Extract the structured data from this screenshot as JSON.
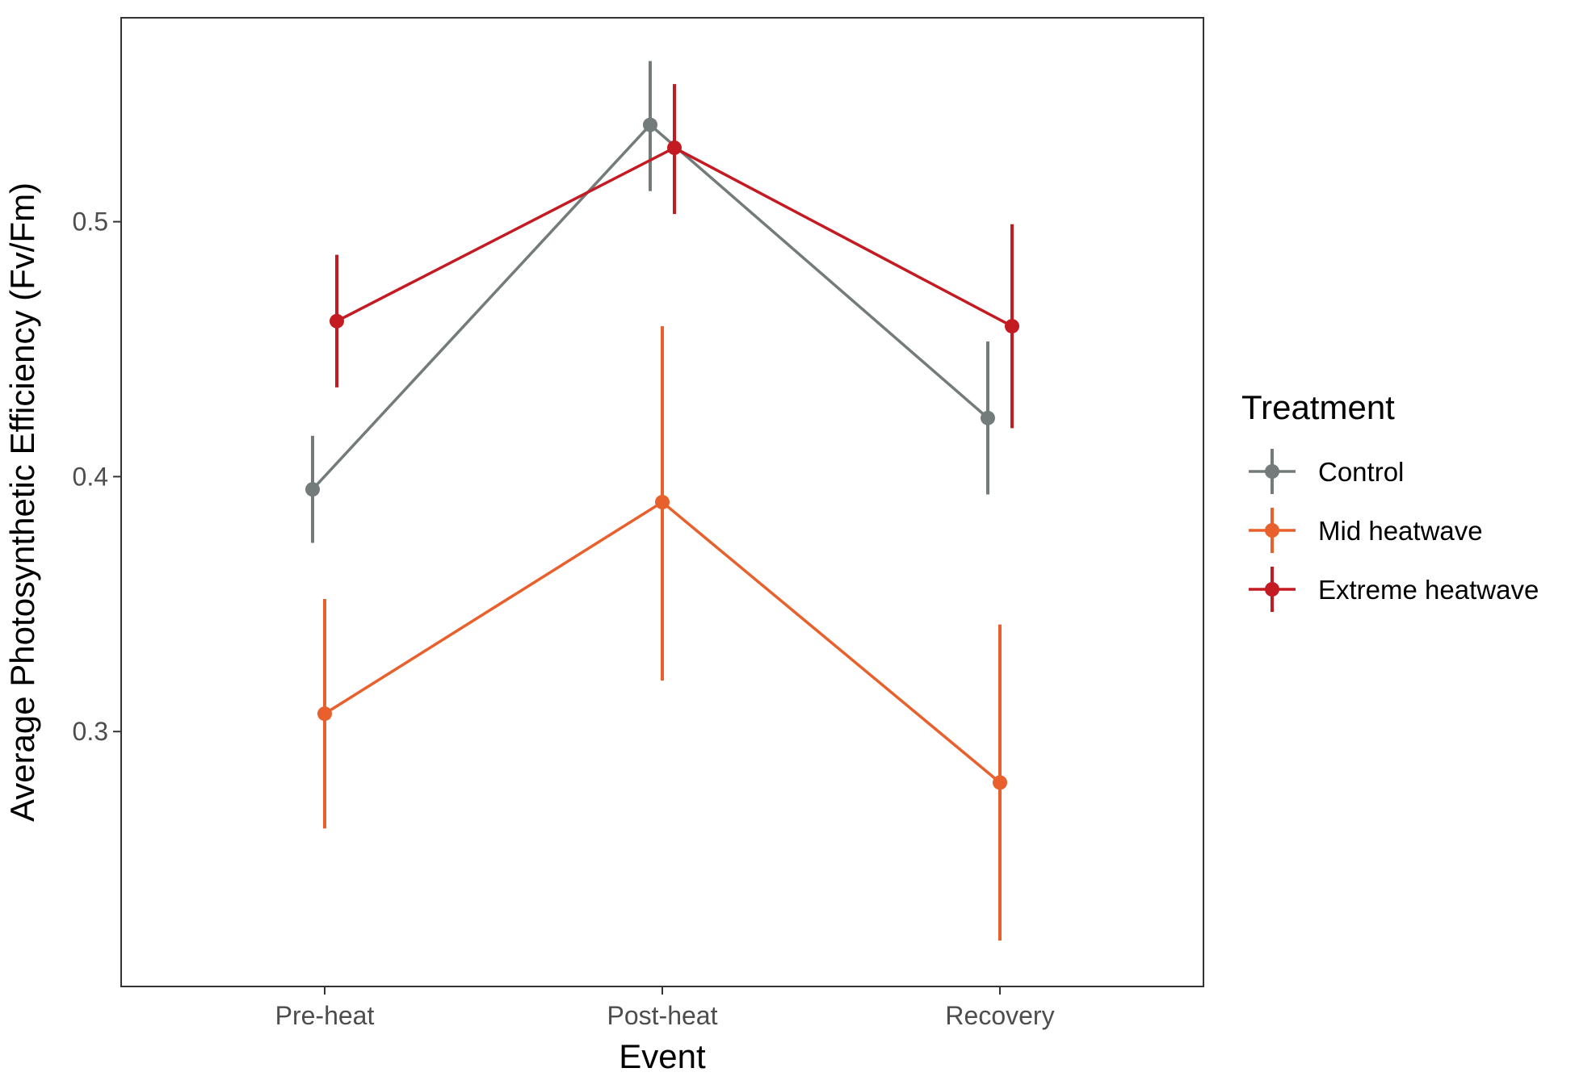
{
  "chart_data": {
    "type": "line",
    "xlabel": "Event",
    "ylabel": "Average Photosynthetic Efficiency (Fv/Fm)",
    "categories": [
      "Pre-heat",
      "Post-heat",
      "Recovery"
    ],
    "ylim": [
      0.2,
      0.58
    ],
    "yticks": [
      0.3,
      0.4,
      0.5
    ],
    "ytick_labels": [
      "0.3",
      "0.4",
      "0.5"
    ],
    "grid": false,
    "legend_title": "Treatment",
    "legend_position": "right",
    "series": [
      {
        "name": "Control",
        "color": "#737b7b",
        "values": [
          0.395,
          0.538,
          0.423
        ],
        "lower": [
          0.374,
          0.512,
          0.393
        ],
        "upper": [
          0.416,
          0.563,
          0.453
        ]
      },
      {
        "name": "Mid heatwave",
        "color": "#e8602c",
        "values": [
          0.307,
          0.39,
          0.28
        ],
        "lower": [
          0.262,
          0.32,
          0.218
        ],
        "upper": [
          0.352,
          0.459,
          0.342
        ]
      },
      {
        "name": "Extreme heatwave",
        "color": "#c41a22",
        "values": [
          0.461,
          0.529,
          0.459
        ],
        "lower": [
          0.435,
          0.503,
          0.419
        ],
        "upper": [
          0.487,
          0.554,
          0.499
        ]
      }
    ]
  }
}
